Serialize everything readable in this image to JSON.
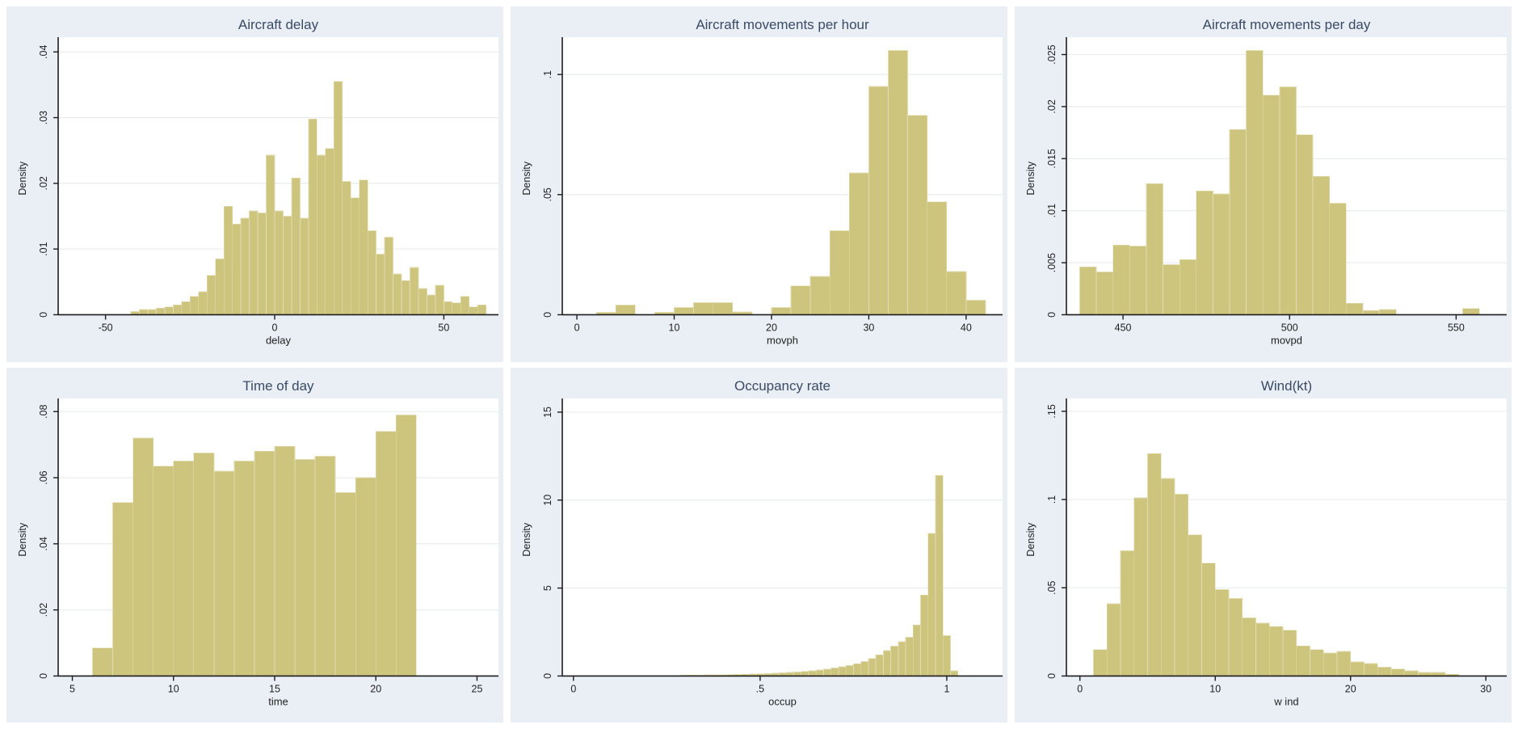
{
  "figure": {
    "layout": "2x3-histogram-grid",
    "rows": 2,
    "cols": 3
  },
  "style": {
    "panel_bg": "#e9eff4",
    "plot_bg": "#ffffff",
    "bar_fill": "#cdc47e",
    "bar_stroke": "#e2ddb2",
    "grid_color": "#e7ebee",
    "axis_color": "#1c1c1c",
    "tick_text_color": "#1f1f1f",
    "title_color": "#3a4a66"
  },
  "chart_data": [
    {
      "type": "bar",
      "slug": "aircraft-delay",
      "title": "Aircraft delay",
      "xlabel": "delay",
      "ylabel": "Density",
      "xlim": [
        -64,
        64
      ],
      "ylim": [
        0,
        0.0415
      ],
      "xtick_values": [
        -50,
        0,
        50
      ],
      "xtick_labels": [
        "-50",
        "0",
        "50"
      ],
      "ytick_values": [
        0,
        0.01,
        0.02,
        0.03,
        0.04
      ],
      "ytick_labels": [
        "0",
        ".01",
        ".02",
        ".03",
        ".04"
      ],
      "grid": true,
      "legend": "none",
      "bin_start": -42.5,
      "bin_width": 2.5,
      "values": [
        0.0005,
        0.0008,
        0.0008,
        0.001,
        0.0012,
        0.0015,
        0.002,
        0.0028,
        0.0035,
        0.006,
        0.0085,
        0.0165,
        0.0138,
        0.0147,
        0.0158,
        0.0155,
        0.0243,
        0.0158,
        0.015,
        0.0208,
        0.0147,
        0.0298,
        0.0243,
        0.0253,
        0.0355,
        0.0203,
        0.0178,
        0.0205,
        0.0128,
        0.0092,
        0.0118,
        0.0062,
        0.0052,
        0.0072,
        0.004,
        0.003,
        0.0045,
        0.002,
        0.0018,
        0.0028,
        0.0012,
        0.0015
      ]
    },
    {
      "type": "bar",
      "slug": "aircraft-movements-per-hour",
      "title": "Aircraft movements per hour",
      "xlabel": "movph",
      "ylabel": "Density",
      "xlim": [
        -1.5,
        43
      ],
      "ylim": [
        0,
        0.1135
      ],
      "xtick_values": [
        0,
        10,
        20,
        30,
        40
      ],
      "xtick_labels": [
        "0",
        "10",
        "20",
        "30",
        "40"
      ],
      "ytick_values": [
        0,
        0.05,
        0.1
      ],
      "ytick_labels": [
        "0",
        ".05",
        ".1"
      ],
      "grid": true,
      "legend": "none",
      "bin_start": 2,
      "bin_width": 2,
      "values": [
        0.001,
        0.004,
        0,
        0.001,
        0.003,
        0.005,
        0.005,
        0.0012,
        0,
        0.003,
        0.012,
        0.016,
        0.035,
        0.059,
        0.095,
        0.11,
        0.083,
        0.047,
        0.018,
        0.006
      ]
    },
    {
      "type": "bar",
      "slug": "aircraft-movements-per-day",
      "title": "Aircraft movements per day",
      "xlabel": "movpd",
      "ylabel": "Density",
      "xlim": [
        433,
        563
      ],
      "ylim": [
        0,
        0.0262
      ],
      "xtick_values": [
        450,
        500,
        550
      ],
      "xtick_labels": [
        "450",
        "500",
        "550"
      ],
      "ytick_values": [
        0,
        0.005,
        0.01,
        0.015,
        0.02,
        0.025
      ],
      "ytick_labels": [
        "0",
        ".005",
        ".01",
        ".015",
        ".02",
        ".025"
      ],
      "grid": true,
      "legend": "none",
      "bin_start": 437,
      "bin_width": 5,
      "values": [
        0.0046,
        0.0041,
        0.0067,
        0.0066,
        0.0126,
        0.0048,
        0.0053,
        0.0119,
        0.0116,
        0.0178,
        0.0254,
        0.0211,
        0.0219,
        0.0173,
        0.0133,
        0.0107,
        0.0011,
        0.0004,
        0.0005,
        0,
        0,
        0,
        0,
        0.0006
      ]
    },
    {
      "type": "bar",
      "slug": "time-of-day",
      "title": "Time of day",
      "xlabel": "time",
      "ylabel": "Density",
      "xlim": [
        4.3,
        25.7
      ],
      "ylim": [
        0,
        0.0825
      ],
      "xtick_values": [
        5,
        10,
        15,
        20,
        25
      ],
      "xtick_labels": [
        "5",
        "10",
        "15",
        "20",
        "25"
      ],
      "ytick_values": [
        0,
        0.02,
        0.04,
        0.06,
        0.08
      ],
      "ytick_labels": [
        "0",
        ".02",
        ".04",
        ".06",
        ".08"
      ],
      "grid": true,
      "legend": "none",
      "bin_start": 6,
      "bin_width": 1,
      "values": [
        0.0085,
        0.0525,
        0.072,
        0.0635,
        0.065,
        0.0675,
        0.062,
        0.065,
        0.068,
        0.0695,
        0.0655,
        0.0665,
        0.0555,
        0.06,
        0.074,
        0.079
      ]
    },
    {
      "type": "bar",
      "slug": "occupancy-rate",
      "title": "Occupancy rate",
      "xlabel": "occup",
      "ylabel": "Density",
      "xlim": [
        -0.03,
        1.13
      ],
      "ylim": [
        0,
        15.5
      ],
      "xtick_values": [
        0,
        0.5,
        1
      ],
      "xtick_labels": [
        "0",
        ".5",
        "1"
      ],
      "ytick_values": [
        0,
        5,
        10,
        15
      ],
      "ytick_labels": [
        "0",
        "5",
        "10",
        "15"
      ],
      "grid": true,
      "legend": "none",
      "bin_start": 0.27,
      "bin_width": 0.02,
      "values": [
        0.03,
        0.04,
        0.05,
        0.05,
        0.06,
        0.07,
        0.07,
        0.08,
        0.09,
        0.1,
        0.11,
        0.12,
        0.14,
        0.16,
        0.18,
        0.2,
        0.23,
        0.26,
        0.3,
        0.34,
        0.39,
        0.45,
        0.52,
        0.6,
        0.7,
        0.82,
        1.0,
        1.2,
        1.45,
        1.7,
        1.95,
        2.2,
        2.9,
        4.6,
        8.1,
        11.4,
        2.3,
        0.3
      ]
    },
    {
      "type": "bar",
      "slug": "wind-kt",
      "title": "Wind(kt)",
      "xlabel": "w ind",
      "ylabel": "Density",
      "xlim": [
        -1,
        31
      ],
      "ylim": [
        0,
        0.1545
      ],
      "xtick_values": [
        0,
        10,
        20,
        30
      ],
      "xtick_labels": [
        "0",
        "10",
        "20",
        "30"
      ],
      "ytick_values": [
        0,
        0.05,
        0.1,
        0.15
      ],
      "ytick_labels": [
        "0",
        ".05",
        ".1",
        ".15"
      ],
      "grid": true,
      "legend": "none",
      "bin_start": 1,
      "bin_width": 1,
      "values": [
        0.015,
        0.041,
        0.071,
        0.101,
        0.126,
        0.112,
        0.103,
        0.08,
        0.064,
        0.049,
        0.044,
        0.033,
        0.03,
        0.028,
        0.026,
        0.017,
        0.015,
        0.013,
        0.014,
        0.008,
        0.007,
        0.005,
        0.004,
        0.003,
        0.002,
        0.002,
        0.001
      ]
    }
  ]
}
